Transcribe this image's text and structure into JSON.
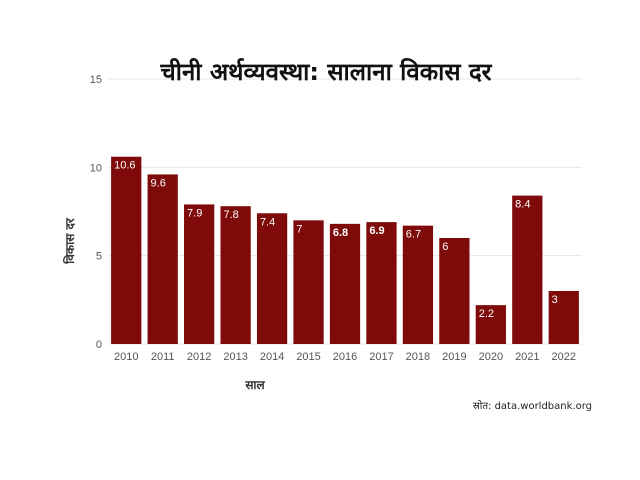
{
  "chart_data": {
    "type": "bar",
    "title": "चीनी अर्थव्यवस्था: सालाना विकास दर",
    "xlabel": "साल",
    "ylabel": "विकास दर",
    "categories": [
      "2010",
      "2011",
      "2012",
      "2013",
      "2014",
      "2015",
      "2016",
      "2017",
      "2018",
      "2019",
      "2020",
      "2021",
      "2022"
    ],
    "values": [
      10.6,
      9.6,
      7.9,
      7.8,
      7.4,
      7,
      6.8,
      6.9,
      6.7,
      6,
      2.2,
      8.4,
      3
    ],
    "value_labels": [
      "10.6",
      "9.6",
      "7.9",
      "7.8",
      "7.4",
      "7",
      "6.8",
      "6.9",
      "6.7",
      "6",
      "2.2",
      "8.4",
      "3"
    ],
    "bold_labels": [
      "2016",
      "2017"
    ],
    "yticks": [
      0,
      5,
      10,
      15
    ],
    "ylim": [
      0,
      15
    ],
    "bar_color": "#7f0a0a",
    "grid": true,
    "source": "स्रोत: data.worldbank.org"
  }
}
